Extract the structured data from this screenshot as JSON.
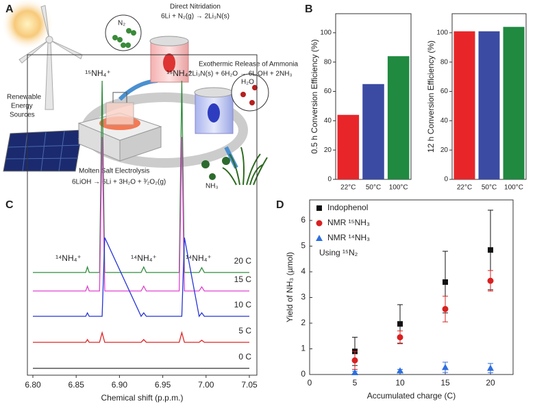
{
  "panel_labels": [
    "A",
    "B",
    "C",
    "D"
  ],
  "diagram": {
    "nitridation_title": "Direct Nitridation",
    "nitridation_eq": "6Li + N₂(g) → 2Li₃N(s)",
    "release_title": "Exothermic Release of Ammonia",
    "release_eq": "2Li₃N(s) + 6H₂O → 6LiOH + 2NH₃",
    "renewable": [
      "Renewable",
      "Energy",
      "Sources"
    ],
    "electrolysis_title": "Molten Salt Electrolysis",
    "electrolysis_eq": "6LiOH → 6Li + 3H₂O + ³⁄₂O₂(g)",
    "n2": "N₂",
    "h2o": "H₂O",
    "nh3": "NH₃"
  },
  "chart_data": [
    {
      "type": "bar",
      "ylabel": "0.5 h Conversion Efficiency (%)",
      "categories": [
        "22°C",
        "50°C",
        "100°C"
      ],
      "values": [
        44,
        65,
        84
      ],
      "colors": [
        "#e8262a",
        "#3b4ba3",
        "#1f8a40"
      ],
      "ylim": [
        0,
        113
      ],
      "yticks": [
        0,
        20,
        40,
        60,
        80,
        100
      ]
    },
    {
      "type": "bar",
      "ylabel": "12 h Conversion Efficiency (%)",
      "categories": [
        "22°C",
        "50°C",
        "100°C"
      ],
      "values": [
        101,
        101,
        104
      ],
      "colors": [
        "#e8262a",
        "#3b4ba3",
        "#1f8a40"
      ],
      "ylim": [
        0,
        113
      ],
      "yticks": [
        0,
        20,
        40,
        60,
        80,
        100
      ]
    },
    {
      "type": "line",
      "xlabel": "Chemical shift (p.p.m.)",
      "xlim": [
        6.8,
        7.05
      ],
      "xticks": [
        {
          "value": 6.8,
          "label": "6.80"
        },
        {
          "value": 6.85,
          "label": "6.85"
        },
        {
          "value": 6.9,
          "label": "6.90"
        },
        {
          "value": 6.95,
          "label": "6.95"
        },
        {
          "value": 7.0,
          "label": "7.00"
        },
        {
          "value": 7.05,
          "label": "7.05"
        }
      ],
      "annotations": [
        "¹⁵NH₄⁺",
        "¹⁵NH₄⁺",
        "¹⁴NH₄⁺",
        "¹⁴NH₄⁺",
        "¹⁴NH₄⁺"
      ],
      "x": [
        6.8,
        6.861,
        6.863,
        6.865,
        6.877,
        6.88,
        6.883,
        6.925,
        6.928,
        6.931,
        6.969,
        6.972,
        6.975,
        6.992,
        6.995,
        6.998,
        7.05
      ],
      "series": [
        {
          "name": "20 C",
          "color": "#2e8b3a",
          "values": [
            0,
            0,
            8,
            0,
            0,
            280,
            0,
            0,
            8,
            0,
            0,
            280,
            0,
            0,
            7,
            0,
            0
          ]
        },
        {
          "name": "15 C",
          "color": "#e040d0",
          "values": [
            0,
            0,
            7,
            0,
            0,
            225,
            0,
            0,
            7,
            0,
            0,
            225,
            0,
            0,
            6,
            0,
            0
          ]
        },
        {
          "name": "10 C",
          "color": "#2432d6",
          "values": [
            0,
            0,
            5,
            0,
            0,
            0,
            115,
            0,
            5,
            0,
            0,
            0,
            115,
            0,
            5,
            0,
            0
          ]
        },
        {
          "name": "5 C",
          "color": "#e02222",
          "values": [
            0,
            0,
            4,
            0,
            0,
            14,
            0,
            0,
            4,
            0,
            0,
            14,
            0,
            0,
            3,
            0,
            0
          ]
        },
        {
          "name": "0 C",
          "color": "#333333",
          "values": [
            0,
            0,
            0,
            0,
            0,
            0,
            0,
            0,
            0,
            0,
            0,
            0,
            0,
            0,
            0,
            0,
            0
          ]
        }
      ]
    },
    {
      "type": "scatter",
      "xlabel": "Accumulated charge (C)",
      "ylabel": "Yield of NH₃ (µmol)",
      "annotation": "Using ¹⁵N₂",
      "xlim": [
        0,
        22.5
      ],
      "ylim": [
        0,
        6.8
      ],
      "xticks": [
        0,
        5,
        10,
        15,
        20
      ],
      "yticks": [
        0,
        1,
        2,
        3,
        4,
        5,
        6
      ],
      "x": [
        5,
        10,
        15,
        20
      ],
      "series": [
        {
          "name": "Indophenol",
          "color": "#111111",
          "marker": "square",
          "values": [
            0.9,
            1.97,
            3.6,
            4.85
          ],
          "errors": [
            0.55,
            0.75,
            1.2,
            1.55
          ]
        },
        {
          "name": "NMR ¹⁵NH₃",
          "color": "#d92020",
          "marker": "circle",
          "values": [
            0.55,
            1.45,
            2.55,
            3.65
          ],
          "errors": [
            0.35,
            0.25,
            0.5,
            0.4
          ]
        },
        {
          "name": "NMR ¹⁴NH₃",
          "color": "#2e6ee0",
          "marker": "triangle",
          "values": [
            0.08,
            0.15,
            0.28,
            0.25
          ],
          "errors": [
            0.05,
            0.05,
            0.2,
            0.18
          ]
        }
      ]
    }
  ]
}
